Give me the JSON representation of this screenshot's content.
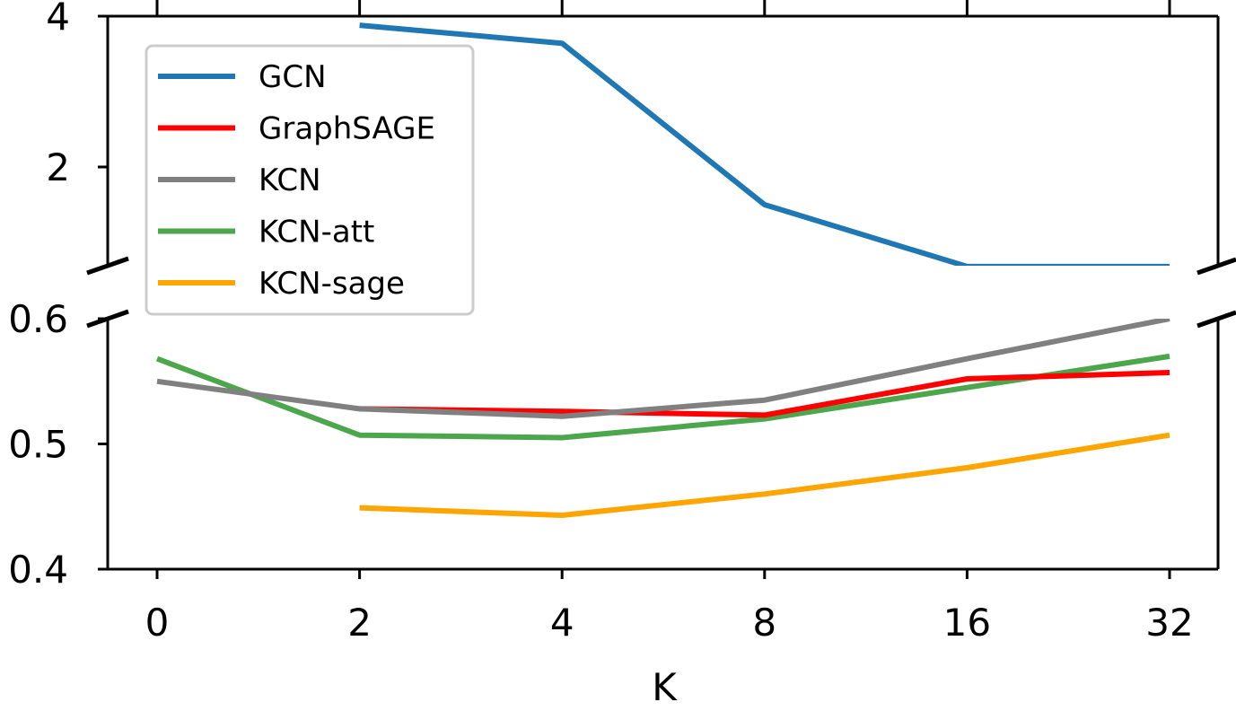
{
  "chart_data": {
    "type": "line",
    "broken_y_axis": true,
    "xlabel": "K",
    "categories": [
      "0",
      "2",
      "4",
      "8",
      "16",
      "32"
    ],
    "upper_panel": {
      "ylim": [
        0.7,
        4
      ],
      "yticks": [
        "4",
        "2"
      ],
      "ytick_values": [
        4,
        2
      ]
    },
    "lower_panel": {
      "ylim": [
        0.4,
        0.6
      ],
      "yticks": [
        "0.6",
        "0.5",
        "0.4"
      ],
      "ytick_values": [
        0.6,
        0.5,
        0.4
      ]
    },
    "legend_position": "upper-left",
    "series": [
      {
        "name": "GCN",
        "color": "#1f77b4",
        "values": [
          null,
          3.88,
          3.64,
          1.5,
          0.68,
          0.68
        ]
      },
      {
        "name": "GraphSAGE",
        "color": "#ff0000",
        "values": [
          null,
          0.528,
          0.526,
          0.523,
          0.552,
          0.557
        ]
      },
      {
        "name": "KCN",
        "color": "#808080",
        "values": [
          0.55,
          0.528,
          0.522,
          0.535,
          0.568,
          0.6
        ]
      },
      {
        "name": "KCN-att",
        "color": "#008000",
        "opacity": 0.7,
        "values": [
          0.568,
          0.507,
          0.505,
          0.52,
          0.545,
          0.57
        ]
      },
      {
        "name": "KCN-sage",
        "color": "#ffa500",
        "values": [
          null,
          0.449,
          0.443,
          0.46,
          0.481,
          0.507
        ]
      }
    ]
  }
}
